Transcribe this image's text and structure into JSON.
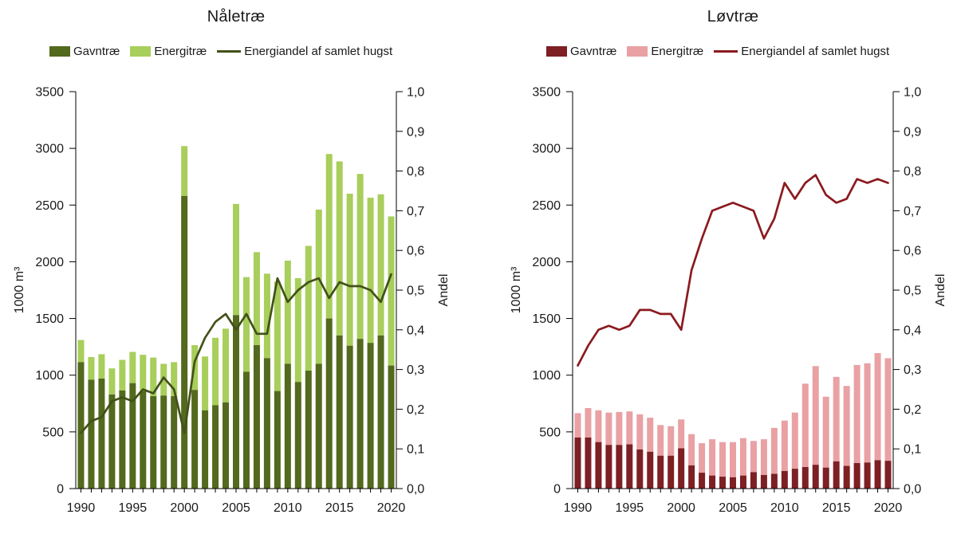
{
  "chart_data": [
    {
      "type": "stacked-bar+line",
      "title": "Nåletræ",
      "x": [
        1990,
        1991,
        1992,
        1993,
        1994,
        1995,
        1996,
        1997,
        1998,
        1999,
        2000,
        2001,
        2002,
        2003,
        2004,
        2005,
        2006,
        2007,
        2008,
        2009,
        2010,
        2011,
        2012,
        2013,
        2014,
        2015,
        2016,
        2017,
        2018,
        2019,
        2020
      ],
      "series": [
        {
          "name": "Gavntræ",
          "type": "bar",
          "color": "#53691d",
          "values": [
            1115,
            960,
            970,
            830,
            865,
            930,
            860,
            815,
            820,
            815,
            2580,
            870,
            690,
            735,
            760,
            1530,
            1030,
            1265,
            1150,
            860,
            1100,
            940,
            1040,
            1100,
            1500,
            1350,
            1260,
            1320,
            1285,
            1350,
            1085
          ]
        },
        {
          "name": "Energitræ",
          "type": "bar",
          "color": "#a8ce5b",
          "values": [
            195,
            200,
            215,
            230,
            270,
            275,
            320,
            340,
            280,
            300,
            440,
            395,
            475,
            595,
            650,
            980,
            835,
            820,
            745,
            965,
            910,
            915,
            1100,
            1360,
            1450,
            1535,
            1340,
            1455,
            1280,
            1245,
            1315
          ]
        },
        {
          "name": "Energiandel af samlet hugst",
          "type": "line",
          "axis": "right",
          "color": "#42511a",
          "values": [
            0.14,
            0.17,
            0.18,
            0.22,
            0.23,
            0.22,
            0.25,
            0.24,
            0.28,
            0.25,
            0.14,
            0.32,
            0.38,
            0.42,
            0.44,
            0.4,
            0.44,
            0.39,
            0.39,
            0.53,
            0.47,
            0.5,
            0.52,
            0.53,
            0.48,
            0.52,
            0.51,
            0.51,
            0.5,
            0.47,
            0.54
          ]
        }
      ],
      "ylabel_left": "1000 m³",
      "ylabel_right": "Andel",
      "ylim_left": [
        0,
        3500
      ],
      "ylim_right": [
        0,
        1.0
      ],
      "ytick_labels_left": [
        "0",
        "500",
        "1000",
        "1500",
        "2000",
        "2500",
        "3000",
        "3500"
      ],
      "ytick_labels_right": [
        "0,0",
        "0,1",
        "0,2",
        "0,3",
        "0,4",
        "0,5",
        "0,6",
        "0,7",
        "0,8",
        "0,9",
        "1,0"
      ],
      "xtick_labels": [
        "1990",
        "1995",
        "2000",
        "2005",
        "2010",
        "2015",
        "2020"
      ],
      "legend_position": "top",
      "grid": false
    },
    {
      "type": "stacked-bar+line",
      "title": "Løvtræ",
      "x": [
        1990,
        1991,
        1992,
        1993,
        1994,
        1995,
        1996,
        1997,
        1998,
        1999,
        2000,
        2001,
        2002,
        2003,
        2004,
        2005,
        2006,
        2007,
        2008,
        2009,
        2010,
        2011,
        2012,
        2013,
        2014,
        2015,
        2016,
        2017,
        2018,
        2019,
        2020
      ],
      "series": [
        {
          "name": "Gavntræ",
          "type": "bar",
          "color": "#7d1f23",
          "values": [
            450,
            450,
            410,
            385,
            385,
            390,
            345,
            325,
            290,
            290,
            355,
            205,
            140,
            115,
            105,
            100,
            115,
            145,
            120,
            130,
            155,
            175,
            190,
            210,
            185,
            240,
            200,
            225,
            230,
            250,
            245
          ]
        },
        {
          "name": "Energitræ",
          "type": "bar",
          "color": "#e9a1a4",
          "values": [
            215,
            260,
            280,
            285,
            290,
            290,
            310,
            300,
            270,
            260,
            255,
            275,
            260,
            320,
            305,
            310,
            330,
            275,
            315,
            405,
            445,
            495,
            735,
            870,
            625,
            745,
            705,
            865,
            875,
            945,
            905
          ]
        },
        {
          "name": "Energiandel af samlet hugst",
          "type": "line",
          "axis": "right",
          "color": "#8b1a1f",
          "values": [
            0.31,
            0.36,
            0.4,
            0.41,
            0.4,
            0.41,
            0.45,
            0.45,
            0.44,
            0.44,
            0.4,
            0.55,
            0.63,
            0.7,
            0.71,
            0.72,
            0.71,
            0.7,
            0.63,
            0.68,
            0.77,
            0.73,
            0.77,
            0.79,
            0.74,
            0.72,
            0.73,
            0.78,
            0.77,
            0.78,
            0.77
          ]
        }
      ],
      "ylabel_left": "1000 m³",
      "ylabel_right": "Andel",
      "ylim_left": [
        0,
        3500
      ],
      "ylim_right": [
        0,
        1.0
      ],
      "ytick_labels_left": [
        "0",
        "500",
        "1000",
        "1500",
        "2000",
        "2500",
        "3000",
        "3500"
      ],
      "ytick_labels_right": [
        "0,0",
        "0,1",
        "0,2",
        "0,3",
        "0,4",
        "0,5",
        "0,6",
        "0,7",
        "0,8",
        "0,9",
        "1,0"
      ],
      "xtick_labels": [
        "1990",
        "1995",
        "2000",
        "2005",
        "2010",
        "2015",
        "2020"
      ],
      "legend_position": "top",
      "grid": false
    }
  ]
}
